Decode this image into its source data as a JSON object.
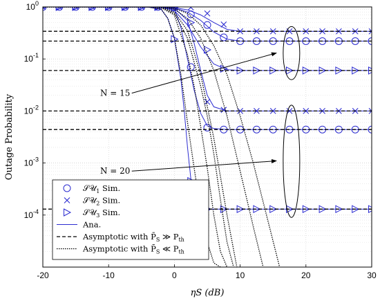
{
  "chart_data": {
    "type": "line",
    "title": "",
    "xlabel": "ηS (dB)",
    "ylabel": "Outage Probability",
    "x_scale": "linear",
    "y_scale": "log",
    "xlim": [
      -20,
      30
    ],
    "ylim": [
      1e-05,
      1
    ],
    "x_ticks": [
      -20,
      -10,
      0,
      10,
      20,
      30
    ],
    "x_tick_labels": [
      "-20",
      "-10",
      "0",
      "10",
      "20",
      "30"
    ],
    "y_ticks": [
      1,
      0.1,
      0.01,
      0.001,
      0.0001
    ],
    "y_tick_labels": [
      {
        "base": "10",
        "exp": "0"
      },
      {
        "base": "10",
        "exp": "-1"
      },
      {
        "base": "10",
        "exp": "-2"
      },
      {
        "base": "10",
        "exp": "-3"
      },
      {
        "base": "10",
        "exp": "-4"
      }
    ],
    "grid": true,
    "legend_position": "bottom-left",
    "legend": [
      {
        "pre": "𝒮𝒰",
        "sub": "1",
        "post": " Sim.",
        "marker": "circle",
        "style": "marker"
      },
      {
        "pre": "𝒮𝒰",
        "sub": "2",
        "post": " Sim.",
        "marker": "x",
        "style": "marker"
      },
      {
        "pre": "𝒮𝒰",
        "sub": "3",
        "post": " Sim.",
        "marker": "triangle-right",
        "style": "marker"
      },
      {
        "pre": "Ana.",
        "sub": "",
        "post": "",
        "marker": "none",
        "style": "solid"
      },
      {
        "pre": "Asymptotic with P̄",
        "sub": "S",
        "post": " ≫ P",
        "sub2": "th",
        "marker": "none",
        "style": "dashed"
      },
      {
        "pre": "Asymptotic with P̄",
        "sub": "S",
        "post": " ≪ P",
        "sub2": "th",
        "marker": "none",
        "style": "dotted"
      }
    ],
    "annotations": [
      {
        "text": "N = 15",
        "text_x": -9,
        "text_y": 0.022,
        "arrow_to_x": 15.5,
        "arrow_to_y": 0.13,
        "ellipse_cx": 17.8,
        "ellipse_cy": 0.11,
        "ellipse_y_top": 0.42,
        "ellipse_y_bottom": 0.04
      },
      {
        "text": "N = 20",
        "text_x": -9,
        "text_y": 0.0007,
        "arrow_to_x": 15.5,
        "arrow_to_y": 0.0011,
        "ellipse_cx": 17.8,
        "ellipse_cy": 0.0013,
        "ellipse_y_top": 0.013,
        "ellipse_y_bottom": 9e-05
      }
    ],
    "series": [
      {
        "marker": "x",
        "style": "marker",
        "x": [
          -20,
          -17.5,
          -15,
          -12.5,
          -10,
          -7.5,
          -5,
          -2.5,
          0,
          2.5,
          5,
          7.5,
          10,
          12.5,
          15,
          17.5,
          20,
          22.5,
          25,
          27.5,
          30
        ],
        "y": [
          1,
          1,
          1,
          1,
          1,
          1,
          1,
          1,
          1,
          0.98,
          0.75,
          0.46,
          0.34,
          0.34,
          0.34,
          0.34,
          0.34,
          0.34,
          0.34,
          0.34,
          0.34
        ]
      },
      {
        "marker": "circle",
        "style": "marker",
        "x": [
          -20,
          -17.5,
          -15,
          -12.5,
          -10,
          -7.5,
          -5,
          -2.5,
          0,
          2.5,
          5,
          7.5,
          10,
          12.5,
          15,
          17.5,
          20,
          22.5,
          25,
          27.5,
          30
        ],
        "y": [
          1,
          1,
          1,
          1,
          1,
          1,
          1,
          1,
          0.98,
          0.72,
          0.45,
          0.26,
          0.22,
          0.22,
          0.22,
          0.22,
          0.22,
          0.22,
          0.22,
          0.22,
          0.22
        ]
      },
      {
        "marker": "triangle-right",
        "style": "marker",
        "x": [
          -20,
          -17.5,
          -15,
          -12.5,
          -10,
          -7.5,
          -5,
          -2.5,
          0,
          2.5,
          5,
          7.5,
          10,
          12.5,
          15,
          17.5,
          20,
          22.5,
          25,
          27.5,
          30
        ],
        "y": [
          1,
          1,
          1,
          1,
          1,
          1,
          1,
          1,
          0.95,
          0.5,
          0.15,
          0.065,
          0.06,
          0.06,
          0.06,
          0.06,
          0.06,
          0.06,
          0.06,
          0.06,
          0.06
        ]
      },
      {
        "marker": "x",
        "style": "marker",
        "x": [
          5,
          7.5,
          10,
          12.5,
          15,
          17.5,
          20,
          22.5,
          25,
          27.5,
          30
        ],
        "y": [
          0.015,
          0.0105,
          0.01,
          0.01,
          0.01,
          0.01,
          0.01,
          0.01,
          0.01,
          0.01,
          0.01
        ]
      },
      {
        "marker": "circle",
        "style": "marker",
        "x": [
          2.5,
          5,
          7.5,
          10,
          12.5,
          15,
          17.5,
          20,
          22.5,
          25,
          27.5,
          30
        ],
        "y": [
          0.07,
          0.0048,
          0.0044,
          0.0044,
          0.0044,
          0.0044,
          0.0044,
          0.0044,
          0.0044,
          0.0044,
          0.0044,
          0.0044
        ]
      },
      {
        "marker": "triangle-right",
        "style": "marker",
        "x": [
          -20,
          -17.5,
          -15,
          -12.5,
          -10,
          -7.5,
          -5,
          -2.5,
          0,
          2.5,
          5,
          7.5,
          10,
          12.5,
          15,
          17.5,
          20,
          22.5,
          25,
          27.5,
          30
        ],
        "y": [
          1,
          1,
          1,
          1,
          1,
          1,
          1,
          1,
          0.24,
          0.00045,
          0.00013,
          0.00013,
          0.00013,
          0.00013,
          0.00013,
          0.00013,
          0.00013,
          0.00013,
          0.00013,
          0.00013,
          0.00013
        ]
      },
      {
        "marker": "none",
        "style": "solid",
        "x": [
          -20,
          -5,
          -2,
          0,
          2,
          4,
          6,
          8,
          10,
          30
        ],
        "y": [
          1,
          1,
          0.995,
          0.97,
          0.88,
          0.7,
          0.5,
          0.37,
          0.34,
          0.34
        ]
      },
      {
        "marker": "none",
        "style": "solid",
        "x": [
          -20,
          -5,
          -2,
          0,
          2,
          4,
          6,
          8,
          10,
          30
        ],
        "y": [
          1,
          1,
          0.99,
          0.95,
          0.8,
          0.55,
          0.33,
          0.24,
          0.22,
          0.22
        ]
      },
      {
        "marker": "none",
        "style": "solid",
        "x": [
          -20,
          -5,
          -2,
          0,
          2,
          4,
          6,
          8,
          10,
          30
        ],
        "y": [
          1,
          1,
          0.98,
          0.85,
          0.45,
          0.17,
          0.08,
          0.062,
          0.06,
          0.06
        ]
      },
      {
        "marker": "none",
        "style": "solid",
        "x": [
          -20,
          -2,
          0,
          2,
          3,
          4,
          5,
          6,
          8,
          10,
          30
        ],
        "y": [
          1,
          0.99,
          0.95,
          0.55,
          0.2,
          0.06,
          0.02,
          0.012,
          0.01,
          0.01,
          0.01
        ]
      },
      {
        "marker": "none",
        "style": "solid",
        "x": [
          -20,
          -2,
          0,
          1,
          2,
          3,
          4,
          5,
          6,
          8,
          30
        ],
        "y": [
          1,
          0.99,
          0.9,
          0.4,
          0.1,
          0.025,
          0.009,
          0.0052,
          0.0046,
          0.0044,
          0.0044
        ]
      },
      {
        "marker": "none",
        "style": "solid",
        "x": [
          -20,
          -4,
          -2,
          -1,
          0,
          1,
          1.5,
          2,
          2.5,
          3,
          4,
          6,
          30
        ],
        "y": [
          1,
          0.99,
          0.9,
          0.6,
          0.25,
          0.04,
          0.01,
          0.002,
          0.0005,
          0.0002,
          0.00013,
          0.00013,
          0.00013
        ]
      },
      {
        "marker": "none",
        "style": "dashed",
        "x": [
          -20,
          30
        ],
        "y": [
          0.34,
          0.34
        ]
      },
      {
        "marker": "none",
        "style": "dashed",
        "x": [
          -20,
          30
        ],
        "y": [
          0.22,
          0.22
        ]
      },
      {
        "marker": "none",
        "style": "dashed",
        "x": [
          -20,
          30
        ],
        "y": [
          0.06,
          0.06
        ]
      },
      {
        "marker": "none",
        "style": "dashed",
        "x": [
          -20,
          30
        ],
        "y": [
          0.01,
          0.01
        ]
      },
      {
        "marker": "none",
        "style": "dashed",
        "x": [
          -20,
          30
        ],
        "y": [
          0.0044,
          0.0044
        ]
      },
      {
        "marker": "none",
        "style": "dashed",
        "x": [
          -20,
          30
        ],
        "y": [
          0.00013,
          0.00013
        ]
      },
      {
        "marker": "none",
        "style": "dotted",
        "x": [
          -20,
          -5,
          -2,
          0,
          2,
          4,
          6,
          8,
          10,
          12,
          14,
          16
        ],
        "y": [
          1,
          1,
          0.99,
          0.95,
          0.75,
          0.45,
          0.18,
          0.05,
          0.008,
          0.001,
          0.0001,
          1e-05
        ]
      },
      {
        "marker": "none",
        "style": "dotted",
        "x": [
          -20,
          -5,
          -2,
          0,
          2,
          4,
          6,
          8,
          10,
          12,
          13.5
        ],
        "y": [
          1,
          1,
          0.98,
          0.9,
          0.6,
          0.25,
          0.06,
          0.008,
          0.0007,
          6e-05,
          1e-05
        ]
      },
      {
        "marker": "none",
        "style": "dotted",
        "x": [
          -20,
          -5,
          -2,
          0,
          2,
          4,
          6,
          8,
          9.5
        ],
        "y": [
          1,
          1,
          0.97,
          0.8,
          0.35,
          0.05,
          0.003,
          0.0001,
          1e-05
        ]
      },
      {
        "marker": "none",
        "style": "dotted",
        "x": [
          -20,
          -4,
          -2,
          0,
          2,
          4,
          5,
          6,
          7,
          8,
          9
        ],
        "y": [
          1,
          1,
          0.97,
          0.75,
          0.25,
          0.03,
          0.008,
          0.0015,
          0.0002,
          3e-05,
          1e-05
        ]
      },
      {
        "marker": "none",
        "style": "dotted",
        "x": [
          -20,
          -4,
          -2,
          0,
          2,
          3,
          4,
          5,
          6,
          7,
          8
        ],
        "y": [
          1,
          1,
          0.96,
          0.7,
          0.12,
          0.03,
          0.005,
          0.0008,
          0.0001,
          2e-05,
          1e-05
        ]
      },
      {
        "marker": "none",
        "style": "dotted",
        "x": [
          -20,
          -4,
          -2,
          -1,
          0,
          1,
          2,
          3,
          4,
          5,
          6,
          7
        ],
        "y": [
          1,
          0.99,
          0.9,
          0.6,
          0.25,
          0.05,
          0.006,
          0.0008,
          0.00012,
          3e-05,
          1.2e-05,
          1e-05
        ]
      }
    ]
  }
}
